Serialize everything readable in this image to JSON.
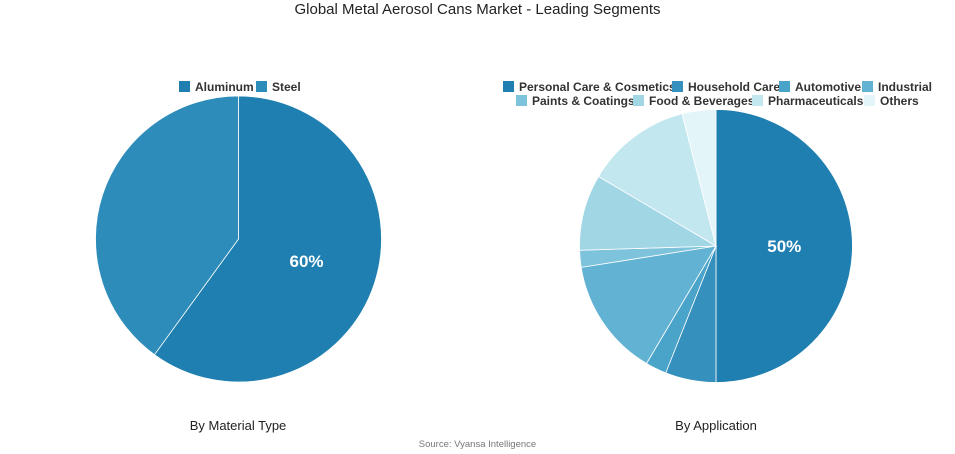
{
  "title": "Global Metal Aerosol Cans Market - Leading Segments",
  "source": "Source: Vyansa Intelligence",
  "chart_data": [
    {
      "type": "pie",
      "xlabel": "By Material Type",
      "categories": [
        "Aluminum",
        "Steel"
      ],
      "values": [
        60,
        40
      ],
      "colors": [
        "#1f7fb0",
        "#2e8cba"
      ],
      "shown_labels": [
        "60%",
        ""
      ],
      "legend_position": "top"
    },
    {
      "type": "pie",
      "xlabel": "By Application",
      "categories": [
        "Personal Care & Cosmetics",
        "Household Care",
        "Automotive",
        "Industrial",
        "Paints & Coatings",
        "Food & Beverages",
        "Pharmaceuticals",
        "Others"
      ],
      "values": [
        50,
        6,
        2.5,
        14,
        2,
        9,
        12.5,
        4
      ],
      "colors": [
        "#1f7fb0",
        "#3590bd",
        "#4aa3c9",
        "#62b3d3",
        "#7ec3dc",
        "#a1d6e5",
        "#c3e7ef",
        "#e4f5f9"
      ],
      "shown_labels": [
        "50%",
        "",
        "",
        "",
        "",
        "",
        "",
        ""
      ],
      "legend_position": "top"
    }
  ]
}
